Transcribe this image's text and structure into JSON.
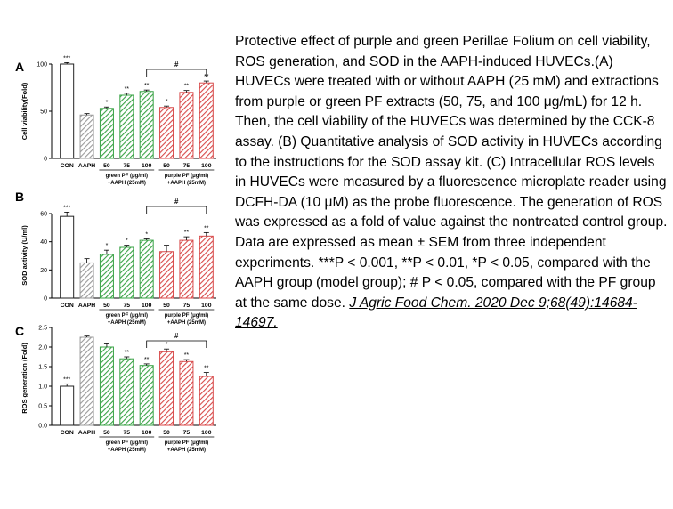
{
  "caption": {
    "text": "Protective effect of purple and green Perillae Folium on cell viability, ROS generation, and SOD in the AAPH-induced HUVECs.(A) HUVECs were treated with or without AAPH (25 mM) and extractions from purple or green PF extracts (50, 75, and 100 μg/mL) for 12 h. Then, the cell viability of the HUVECs was determined by the CCK-8 assay. (B) Quantitative analysis of SOD activity in HUVECs according to the instructions for the SOD assay kit. (C) Intracellular ROS levels in HUVECs were measured by a fluorescence microplate reader using DCFH-DA (10 μM) as the probe fluorescence. The generation of ROS was expressed as a fold of value against the nontreated control group. Data are expressed as mean ± SEM from three independent experiments. ***P < 0.001, **P < 0.01, *P < 0.05, compared with the AAPH group (model group); # P < 0.05, compared with the PF group at the same dose.",
    "citation": "J Agric Food Chem. 2020 Dec 9;68(49):14684-14697."
  },
  "colors": {
    "con": "#ffffff",
    "aaph": "#9a9a9a",
    "green": "#3aa346",
    "purple": "#d84a4a"
  },
  "chart_data": [
    {
      "type": "bar",
      "panel": "A",
      "ylabel": "Cell viability(Fold)",
      "ylim": [
        0,
        100
      ],
      "yticks": [
        "0",
        "50",
        "100"
      ],
      "categories": [
        "CON",
        "AAPH",
        "50",
        "75",
        "100",
        "50",
        "75",
        "100"
      ],
      "values": [
        100,
        46,
        53,
        67,
        71,
        54,
        70,
        80
      ],
      "errors": [
        1.5,
        1.5,
        1.5,
        2,
        1.5,
        1.5,
        2,
        2
      ],
      "significance": [
        "***",
        "",
        "*",
        "**",
        "**",
        "*",
        "**",
        "**"
      ],
      "group_labels": [
        "green PF (μg/ml)\n+AAPH (25mM)",
        "purple PF (μg/ml)\n+AAPH (25mM)"
      ],
      "bracket_label": "#"
    },
    {
      "type": "bar",
      "panel": "B",
      "ylabel": "SOD activity (U/ml)",
      "ylim": [
        0,
        60
      ],
      "yticks": [
        "0",
        "20",
        "40",
        "60"
      ],
      "categories": [
        "CON",
        "AAPH",
        "50",
        "75",
        "100",
        "50",
        "75",
        "100"
      ],
      "values": [
        58,
        25,
        31,
        36,
        41,
        33,
        41,
        44
      ],
      "errors": [
        3,
        3,
        3,
        1.5,
        1,
        4.5,
        2.5,
        2.5
      ],
      "significance": [
        "***",
        "",
        "*",
        "*",
        "*",
        "",
        "**",
        "**"
      ],
      "group_labels": [
        "green PF (μg/ml)\n+AAPH (25mM)",
        "purple PF (μg/ml)\n+AAPH (25mM)"
      ],
      "bracket_label": "#"
    },
    {
      "type": "bar",
      "panel": "C",
      "ylabel": "ROS generation (Fold)",
      "ylim": [
        0,
        2.5
      ],
      "yticks": [
        "0.0",
        "0.5",
        "1.0",
        "1.5",
        "2.0",
        "2.5"
      ],
      "categories": [
        "CON",
        "AAPH",
        "50",
        "75",
        "100",
        "50",
        "75",
        "100"
      ],
      "values": [
        1.0,
        2.25,
        2.0,
        1.7,
        1.53,
        1.88,
        1.63,
        1.25
      ],
      "errors": [
        0.06,
        0.03,
        0.08,
        0.05,
        0.04,
        0.07,
        0.05,
        0.1
      ],
      "significance": [
        "***",
        "",
        "",
        "**",
        "**",
        "*",
        "**",
        "**"
      ],
      "group_labels": [
        "green PF (μg/ml)\n+AAPH (25mM)",
        "purple PF (μg/ml)\n+AAPH (25mM)"
      ],
      "bracket_label": "#"
    }
  ]
}
